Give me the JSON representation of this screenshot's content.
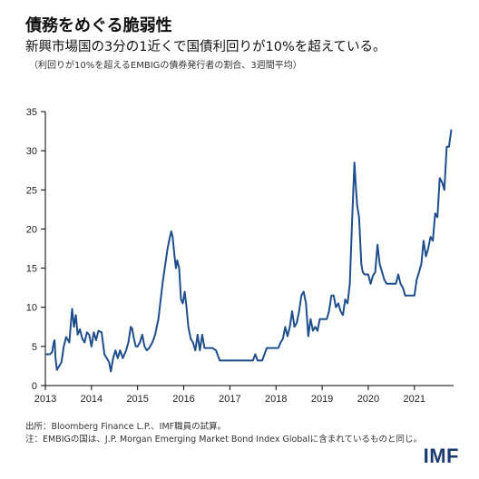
{
  "header": {
    "title": "債務をめぐる脆弱性",
    "subtitle": "新興市場国の3分の1近くで国債利回りが10%を超えている。",
    "note": "（利回りが10%を超えるEMBIGの債券発行者の割合、3週間平均）"
  },
  "footer": {
    "source": "出所：Bloomberg Finance L.P.、IMF職員の試算。",
    "footnote": "注：EMBIGの国は、J.P. Morgan Emerging Market Bond Index Globalに含まれているものと同じ。",
    "logo": "IMF"
  },
  "colors": {
    "line": "#1f4e8c",
    "axis": "#000000",
    "logo": "#1a3a72"
  },
  "chart_data": {
    "type": "line",
    "title": "",
    "xlabel": "",
    "ylabel": "",
    "ylim": [
      0,
      35
    ],
    "xlim": [
      2013.0,
      2021.85
    ],
    "yticks": [
      0,
      5,
      10,
      15,
      20,
      25,
      30,
      35
    ],
    "xticks": [
      "2013",
      "2014",
      "2015",
      "2016",
      "2017",
      "2018",
      "2019",
      "2020",
      "2021"
    ],
    "grid": false,
    "legend": "none",
    "series": [
      {
        "values": [
          [
            2013.0,
            4.0
          ],
          [
            2013.1,
            4.0
          ],
          [
            2013.15,
            4.3
          ],
          [
            2013.18,
            5.5
          ],
          [
            2013.2,
            5.8
          ],
          [
            2013.22,
            3.5
          ],
          [
            2013.25,
            2.0
          ],
          [
            2013.3,
            2.5
          ],
          [
            2013.35,
            3.0
          ],
          [
            2013.4,
            5.0
          ],
          [
            2013.45,
            6.2
          ],
          [
            2013.52,
            5.5
          ],
          [
            2013.58,
            9.8
          ],
          [
            2013.62,
            7.5
          ],
          [
            2013.66,
            9.0
          ],
          [
            2013.7,
            6.5
          ],
          [
            2013.75,
            7.2
          ],
          [
            2013.8,
            6.0
          ],
          [
            2013.85,
            5.5
          ],
          [
            2013.9,
            6.8
          ],
          [
            2013.95,
            6.5
          ],
          [
            2014.0,
            5.0
          ],
          [
            2014.05,
            6.8
          ],
          [
            2014.1,
            5.8
          ],
          [
            2014.15,
            7.0
          ],
          [
            2014.22,
            6.8
          ],
          [
            2014.28,
            4.0
          ],
          [
            2014.33,
            3.5
          ],
          [
            2014.38,
            3.0
          ],
          [
            2014.42,
            1.8
          ],
          [
            2014.47,
            3.5
          ],
          [
            2014.52,
            4.5
          ],
          [
            2014.57,
            3.5
          ],
          [
            2014.62,
            4.5
          ],
          [
            2014.68,
            3.5
          ],
          [
            2014.75,
            4.5
          ],
          [
            2014.8,
            5.5
          ],
          [
            2014.85,
            7.5
          ],
          [
            2014.88,
            7.3
          ],
          [
            2014.92,
            6.0
          ],
          [
            2014.96,
            5.0
          ],
          [
            2015.0,
            5.0
          ],
          [
            2015.05,
            5.5
          ],
          [
            2015.1,
            6.5
          ],
          [
            2015.15,
            5.0
          ],
          [
            2015.2,
            4.5
          ],
          [
            2015.25,
            4.8
          ],
          [
            2015.32,
            5.5
          ],
          [
            2015.38,
            6.5
          ],
          [
            2015.45,
            8.5
          ],
          [
            2015.5,
            11.0
          ],
          [
            2015.55,
            13.5
          ],
          [
            2015.6,
            15.5
          ],
          [
            2015.65,
            17.5
          ],
          [
            2015.7,
            19.0
          ],
          [
            2015.73,
            19.7
          ],
          [
            2015.76,
            19.0
          ],
          [
            2015.8,
            16.5
          ],
          [
            2015.83,
            15.0
          ],
          [
            2015.86,
            16.0
          ],
          [
            2015.9,
            15.0
          ],
          [
            2015.94,
            11.0
          ],
          [
            2015.98,
            10.5
          ],
          [
            2016.02,
            12.0
          ],
          [
            2016.06,
            10.0
          ],
          [
            2016.1,
            7.5
          ],
          [
            2016.15,
            6.0
          ],
          [
            2016.2,
            5.5
          ],
          [
            2016.25,
            4.5
          ],
          [
            2016.3,
            6.5
          ],
          [
            2016.35,
            4.5
          ],
          [
            2016.4,
            6.5
          ],
          [
            2016.45,
            4.8
          ],
          [
            2016.55,
            4.8
          ],
          [
            2016.62,
            4.8
          ],
          [
            2016.7,
            4.5
          ],
          [
            2016.78,
            3.2
          ],
          [
            2016.9,
            3.2
          ],
          [
            2017.0,
            3.2
          ],
          [
            2017.2,
            3.2
          ],
          [
            2017.4,
            3.2
          ],
          [
            2017.5,
            3.2
          ],
          [
            2017.55,
            4.0
          ],
          [
            2017.6,
            3.2
          ],
          [
            2017.7,
            3.2
          ],
          [
            2017.8,
            4.8
          ],
          [
            2017.9,
            4.8
          ],
          [
            2018.0,
            4.8
          ],
          [
            2018.05,
            4.8
          ],
          [
            2018.1,
            5.5
          ],
          [
            2018.15,
            6.0
          ],
          [
            2018.2,
            7.5
          ],
          [
            2018.25,
            6.3
          ],
          [
            2018.3,
            7.5
          ],
          [
            2018.35,
            9.5
          ],
          [
            2018.4,
            7.5
          ],
          [
            2018.45,
            8.0
          ],
          [
            2018.5,
            9.5
          ],
          [
            2018.55,
            11.5
          ],
          [
            2018.6,
            12.0
          ],
          [
            2018.65,
            10.5
          ],
          [
            2018.7,
            6.3
          ],
          [
            2018.75,
            8.5
          ],
          [
            2018.8,
            7.0
          ],
          [
            2018.85,
            7.5
          ],
          [
            2018.9,
            7.0
          ],
          [
            2018.95,
            8.5
          ],
          [
            2019.0,
            8.5
          ],
          [
            2019.1,
            8.5
          ],
          [
            2019.15,
            9.5
          ],
          [
            2019.2,
            11.5
          ],
          [
            2019.25,
            11.5
          ],
          [
            2019.3,
            10.0
          ],
          [
            2019.35,
            10.5
          ],
          [
            2019.4,
            9.5
          ],
          [
            2019.45,
            9.0
          ],
          [
            2019.5,
            11.0
          ],
          [
            2019.55,
            10.5
          ],
          [
            2019.6,
            13.0
          ],
          [
            2019.65,
            21.0
          ],
          [
            2019.7,
            28.5
          ],
          [
            2019.73,
            25.5
          ],
          [
            2019.76,
            23.0
          ],
          [
            2019.8,
            21.5
          ],
          [
            2019.85,
            15.5
          ],
          [
            2019.88,
            14.5
          ],
          [
            2019.92,
            14.2
          ],
          [
            2019.96,
            14.2
          ],
          [
            2020.0,
            14.2
          ],
          [
            2020.05,
            13.0
          ],
          [
            2020.1,
            14.0
          ],
          [
            2020.15,
            14.5
          ],
          [
            2020.2,
            18.0
          ],
          [
            2020.25,
            15.5
          ],
          [
            2020.3,
            14.5
          ],
          [
            2020.35,
            13.5
          ],
          [
            2020.4,
            13.0
          ],
          [
            2020.5,
            13.0
          ],
          [
            2020.6,
            13.0
          ],
          [
            2020.65,
            14.2
          ],
          [
            2020.7,
            13.0
          ],
          [
            2020.75,
            12.5
          ],
          [
            2020.8,
            11.5
          ],
          [
            2020.9,
            11.5
          ],
          [
            2021.0,
            11.5
          ],
          [
            2021.05,
            13.5
          ],
          [
            2021.1,
            14.5
          ],
          [
            2021.15,
            15.5
          ],
          [
            2021.2,
            18.5
          ],
          [
            2021.25,
            16.5
          ],
          [
            2021.3,
            17.5
          ],
          [
            2021.35,
            19.0
          ],
          [
            2021.4,
            18.5
          ],
          [
            2021.45,
            22.0
          ],
          [
            2021.5,
            21.5
          ],
          [
            2021.55,
            26.5
          ],
          [
            2021.6,
            26.0
          ],
          [
            2021.65,
            25.0
          ],
          [
            2021.7,
            30.5
          ],
          [
            2021.75,
            30.5
          ],
          [
            2021.8,
            32.7
          ]
        ]
      }
    ]
  }
}
